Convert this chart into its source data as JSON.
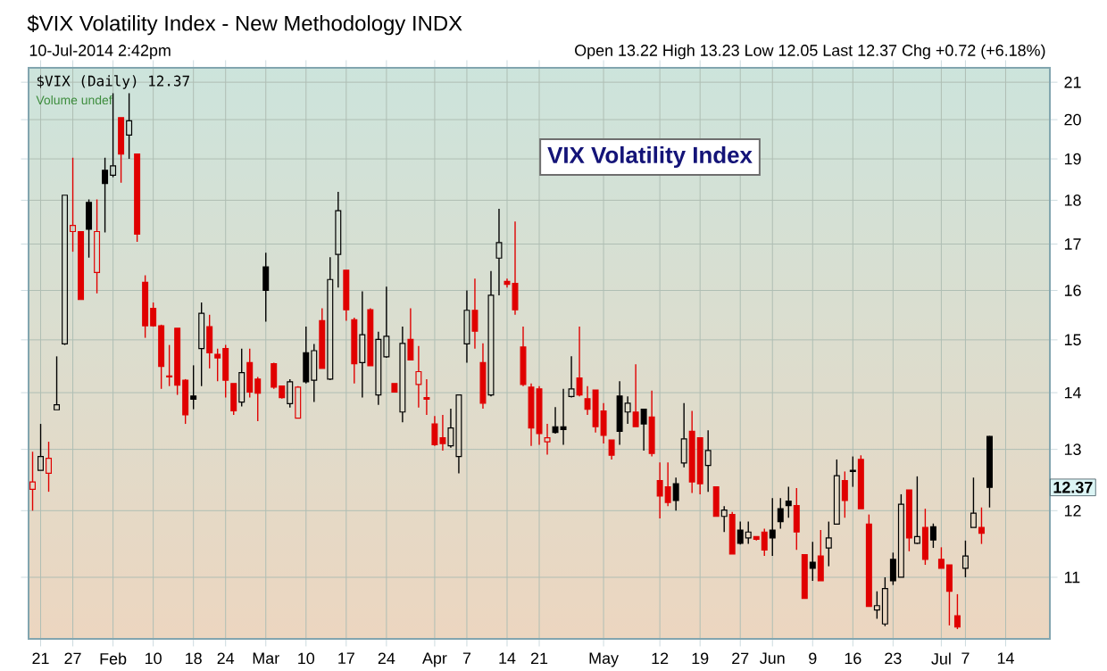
{
  "chart_data": {
    "type": "candlestick",
    "title": "$VIX Volatility Index - New Methodology INDX",
    "subtitle": "10-Jul-2014 2:42pm",
    "annotations": [
      "Open 13.22 High 13.23 Low 12.05 Last 12.37 Chg +0.72 (+6.18%)",
      "$VIX (Daily) 12.37",
      "Volume undef",
      "VIX Volatility Index",
      {
        "text": "12.37",
        "y": 12.37
      }
    ],
    "categories": [
      null,
      "21",
      null,
      null,
      null,
      "27",
      null,
      null,
      null,
      null,
      "Feb",
      null,
      null,
      null,
      null,
      "10",
      null,
      null,
      null,
      null,
      "18",
      null,
      null,
      null,
      "24",
      null,
      null,
      null,
      null,
      "Mar",
      null,
      null,
      null,
      null,
      "10",
      null,
      null,
      null,
      null,
      "17",
      null,
      null,
      null,
      null,
      "24",
      null,
      null,
      null,
      null,
      null,
      "Apr",
      null,
      null,
      null,
      "7",
      null,
      null,
      null,
      null,
      "14",
      null,
      null,
      null,
      "21",
      null,
      null,
      null,
      null,
      null,
      null,
      null,
      "May",
      null,
      null,
      null,
      null,
      null,
      null,
      "12",
      null,
      null,
      null,
      null,
      "19",
      null,
      null,
      null,
      null,
      "27",
      null,
      null,
      null,
      "Jun",
      null,
      null,
      null,
      null,
      "9",
      null,
      null,
      null,
      null,
      "16",
      null,
      null,
      null,
      null,
      "23",
      null,
      null,
      null,
      null,
      null,
      "Jul",
      null,
      null,
      "7",
      null,
      null,
      null,
      null,
      "14",
      null,
      null,
      null,
      null,
      null
    ],
    "ohlc": [
      [
        12.34,
        12.96,
        12.0,
        12.46
      ],
      [
        12.65,
        13.44,
        12.65,
        12.88
      ],
      [
        12.6,
        13.13,
        12.3,
        12.85
      ],
      [
        13.69,
        14.68,
        13.69,
        13.78
      ],
      [
        14.92,
        18.12,
        14.9,
        18.12
      ],
      [
        17.28,
        19.03,
        16.83,
        17.42
      ],
      [
        17.28,
        17.28,
        15.81,
        15.81
      ],
      [
        17.95,
        18.02,
        16.7,
        17.33
      ],
      [
        16.38,
        18.02,
        15.94,
        17.28
      ],
      [
        18.72,
        19.03,
        17.26,
        18.4
      ],
      [
        18.6,
        20.7,
        18.55,
        18.83
      ],
      [
        20.05,
        20.05,
        18.42,
        19.12
      ],
      [
        19.6,
        20.7,
        19.0,
        19.97
      ],
      [
        19.12,
        19.12,
        17.05,
        17.22
      ],
      [
        16.17,
        16.32,
        15.04,
        15.28
      ],
      [
        15.63,
        15.75,
        15.26,
        15.28
      ],
      [
        15.28,
        15.3,
        14.07,
        14.49
      ],
      [
        14.31,
        14.9,
        14.12,
        14.29
      ],
      [
        15.23,
        15.23,
        13.96,
        14.14
      ],
      [
        14.23,
        14.25,
        13.44,
        13.6
      ],
      [
        13.94,
        14.51,
        13.7,
        13.88
      ],
      [
        14.83,
        15.75,
        14.12,
        15.53
      ],
      [
        15.26,
        15.5,
        14.45,
        14.75
      ],
      [
        14.72,
        14.83,
        14.21,
        14.65
      ],
      [
        14.83,
        14.9,
        13.91,
        14.23
      ],
      [
        14.17,
        14.17,
        13.6,
        13.67
      ],
      [
        13.83,
        14.83,
        13.75,
        14.37
      ],
      [
        14.56,
        14.83,
        13.91,
        14.01
      ],
      [
        14.25,
        14.29,
        13.49,
        13.99
      ],
      [
        16.5,
        16.81,
        15.36,
        16.0
      ],
      [
        14.54,
        14.56,
        14.07,
        14.1
      ],
      [
        14.12,
        14.12,
        13.89,
        13.91
      ],
      [
        13.8,
        14.25,
        13.73,
        14.2
      ],
      [
        13.54,
        14.12,
        13.54,
        14.1
      ],
      [
        14.75,
        15.26,
        14.17,
        14.2
      ],
      [
        14.23,
        14.92,
        13.83,
        14.79
      ],
      [
        15.38,
        15.63,
        14.45,
        14.45
      ],
      [
        14.25,
        16.71,
        14.23,
        16.23
      ],
      [
        16.77,
        18.2,
        16.06,
        17.76
      ],
      [
        16.43,
        16.43,
        15.38,
        15.6
      ],
      [
        15.4,
        15.44,
        14.17,
        14.54
      ],
      [
        14.56,
        15.98,
        13.91,
        15.1
      ],
      [
        15.6,
        15.63,
        14.5,
        14.5
      ],
      [
        13.96,
        15.16,
        13.78,
        15.01
      ],
      [
        14.67,
        16.08,
        14.65,
        15.07
      ],
      [
        14.17,
        14.17,
        14.01,
        14.01
      ],
      [
        13.65,
        15.26,
        13.47,
        14.93
      ],
      [
        15.01,
        15.63,
        14.61,
        14.61
      ],
      [
        14.15,
        14.88,
        13.73,
        14.39
      ],
      [
        13.91,
        14.25,
        13.6,
        13.88
      ],
      [
        13.44,
        13.58,
        13.06,
        13.08
      ],
      [
        13.2,
        13.6,
        12.98,
        13.1
      ],
      [
        13.06,
        13.71,
        13.03,
        13.37
      ],
      [
        12.88,
        13.96,
        12.6,
        13.96
      ],
      [
        14.92,
        16.0,
        14.56,
        15.59
      ],
      [
        15.59,
        16.25,
        14.83,
        15.17
      ],
      [
        14.56,
        14.93,
        13.71,
        13.81
      ],
      [
        13.96,
        16.41,
        13.93,
        15.9
      ],
      [
        16.69,
        17.8,
        15.9,
        17.03
      ],
      [
        16.19,
        16.25,
        16.06,
        16.13
      ],
      [
        16.15,
        17.51,
        15.5,
        15.6
      ],
      [
        14.86,
        15.26,
        14.12,
        14.15
      ],
      [
        14.1,
        14.17,
        13.06,
        13.37
      ],
      [
        14.07,
        14.12,
        13.08,
        13.27
      ],
      [
        13.13,
        13.44,
        12.91,
        13.2
      ],
      [
        13.39,
        13.74,
        13.27,
        13.29
      ],
      [
        13.39,
        14.07,
        13.08,
        13.34
      ],
      [
        13.93,
        14.68,
        13.91,
        14.07
      ],
      [
        14.27,
        15.26,
        13.93,
        13.96
      ],
      [
        13.89,
        14.12,
        13.6,
        13.7
      ],
      [
        14.05,
        14.05,
        13.29,
        13.39
      ],
      [
        13.67,
        13.81,
        13.1,
        13.24
      ],
      [
        13.16,
        13.16,
        12.83,
        12.9
      ],
      [
        13.94,
        14.21,
        13.08,
        13.31
      ],
      [
        13.65,
        13.93,
        13.44,
        13.81
      ],
      [
        13.65,
        14.53,
        13.39,
        13.39
      ],
      [
        13.7,
        13.7,
        12.98,
        13.44
      ],
      [
        13.56,
        14.04,
        12.88,
        12.93
      ],
      [
        12.48,
        12.78,
        11.88,
        12.23
      ],
      [
        12.38,
        12.78,
        12.07,
        12.13
      ],
      [
        12.43,
        12.53,
        12.0,
        12.16
      ],
      [
        12.77,
        13.81,
        12.7,
        13.18
      ],
      [
        13.31,
        13.67,
        12.28,
        12.46
      ],
      [
        13.2,
        13.2,
        12.26,
        12.43
      ],
      [
        12.73,
        13.33,
        12.3,
        12.98
      ],
      [
        12.38,
        12.38,
        11.91,
        11.91
      ],
      [
        11.91,
        12.07,
        11.67,
        12.01
      ],
      [
        11.94,
        11.98,
        11.34,
        11.34
      ],
      [
        11.7,
        11.83,
        11.48,
        11.5
      ],
      [
        11.58,
        11.83,
        11.49,
        11.67
      ],
      [
        11.6,
        11.6,
        11.54,
        11.56
      ],
      [
        11.67,
        11.72,
        11.31,
        11.4
      ],
      [
        11.7,
        12.2,
        11.31,
        11.58
      ],
      [
        12.03,
        12.2,
        11.72,
        11.83
      ],
      [
        12.15,
        12.38,
        11.89,
        12.08
      ],
      [
        12.08,
        12.36,
        11.4,
        11.67
      ],
      [
        11.33,
        11.33,
        10.7,
        10.7
      ],
      [
        11.22,
        11.52,
        10.95,
        11.13
      ],
      [
        11.31,
        11.7,
        10.95,
        10.95
      ],
      [
        11.43,
        11.83,
        11.16,
        11.58
      ],
      [
        11.79,
        12.83,
        11.79,
        12.56
      ],
      [
        12.48,
        12.63,
        11.89,
        12.16
      ],
      [
        12.63,
        12.88,
        12.38,
        12.65
      ],
      [
        12.83,
        12.9,
        12.03,
        12.03
      ],
      [
        11.79,
        11.94,
        10.59,
        10.59
      ],
      [
        10.54,
        10.8,
        10.42,
        10.6
      ],
      [
        10.35,
        11.0,
        10.32,
        10.84
      ],
      [
        11.26,
        11.36,
        10.89,
        10.95
      ],
      [
        11.0,
        12.26,
        11.0,
        12.1
      ],
      [
        12.33,
        12.33,
        11.38,
        11.58
      ],
      [
        11.5,
        12.55,
        11.49,
        11.6
      ],
      [
        11.74,
        12.03,
        11.18,
        11.26
      ],
      [
        11.75,
        11.8,
        11.43,
        11.55
      ],
      [
        11.26,
        11.44,
        11.13,
        11.13
      ],
      [
        11.18,
        11.18,
        10.33,
        10.8
      ],
      [
        10.46,
        10.76,
        10.28,
        10.31
      ],
      [
        11.13,
        11.54,
        11.0,
        11.31
      ],
      [
        11.74,
        12.53,
        11.74,
        11.96
      ],
      [
        11.74,
        12.05,
        11.49,
        11.65
      ],
      [
        13.22,
        13.23,
        12.05,
        12.37
      ],
      null,
      null,
      null,
      null,
      null,
      null,
      null
    ],
    "colors": [
      "#e00000",
      "#000000",
      "#e00000",
      "#000000",
      "#000000",
      "#e00000",
      "#e00000",
      "#000000",
      "#e00000",
      "#000000",
      "#000000",
      "#e00000",
      "#000000",
      "#e00000",
      "#e00000",
      "#e00000",
      "#e00000",
      "#e00000",
      "#e00000",
      "#e00000",
      "#000000",
      "#000000",
      "#e00000",
      "#e00000",
      "#e00000",
      "#e00000",
      "#000000",
      "#e00000",
      "#e00000",
      "#000000",
      "#e00000",
      "#e00000",
      "#000000",
      "#e00000",
      "#000000",
      "#000000",
      "#e00000",
      "#000000",
      "#000000",
      "#e00000",
      "#e00000",
      "#000000",
      "#e00000",
      "#000000",
      "#000000",
      "#e00000",
      "#000000",
      "#e00000",
      "#e00000",
      "#e00000",
      "#e00000",
      "#e00000",
      "#000000",
      "#000000",
      "#000000",
      "#e00000",
      "#e00000",
      "#000000",
      "#000000",
      "#e00000",
      "#e00000",
      "#e00000",
      "#e00000",
      "#e00000",
      "#e00000",
      "#000000",
      "#000000",
      "#000000",
      "#e00000",
      "#e00000",
      "#e00000",
      "#e00000",
      "#e00000",
      "#000000",
      "#000000",
      "#e00000",
      "#000000",
      "#e00000",
      "#e00000",
      "#e00000",
      "#000000",
      "#000000",
      "#e00000",
      "#e00000",
      "#000000",
      "#e00000",
      "#000000",
      "#e00000",
      "#000000",
      "#000000",
      "#e00000",
      "#e00000",
      "#000000",
      "#000000",
      "#000000",
      "#e00000",
      "#e00000",
      "#000000",
      "#e00000",
      "#000000",
      "#000000",
      "#e00000",
      "#000000",
      "#e00000",
      "#e00000",
      "#000000",
      "#000000",
      "#000000",
      "#000000",
      "#e00000",
      "#000000",
      "#e00000",
      "#000000",
      "#e00000",
      "#e00000",
      "#e00000",
      "#000000",
      "#000000",
      "#e00000",
      "#000000",
      null,
      null,
      null,
      null,
      null,
      null,
      null
    ],
    "ylim": [
      10.15,
      21.4
    ],
    "yticks": [
      11,
      12,
      13,
      14,
      15,
      16,
      17,
      18,
      19,
      20,
      21
    ],
    "log": "y",
    "grid": true
  }
}
